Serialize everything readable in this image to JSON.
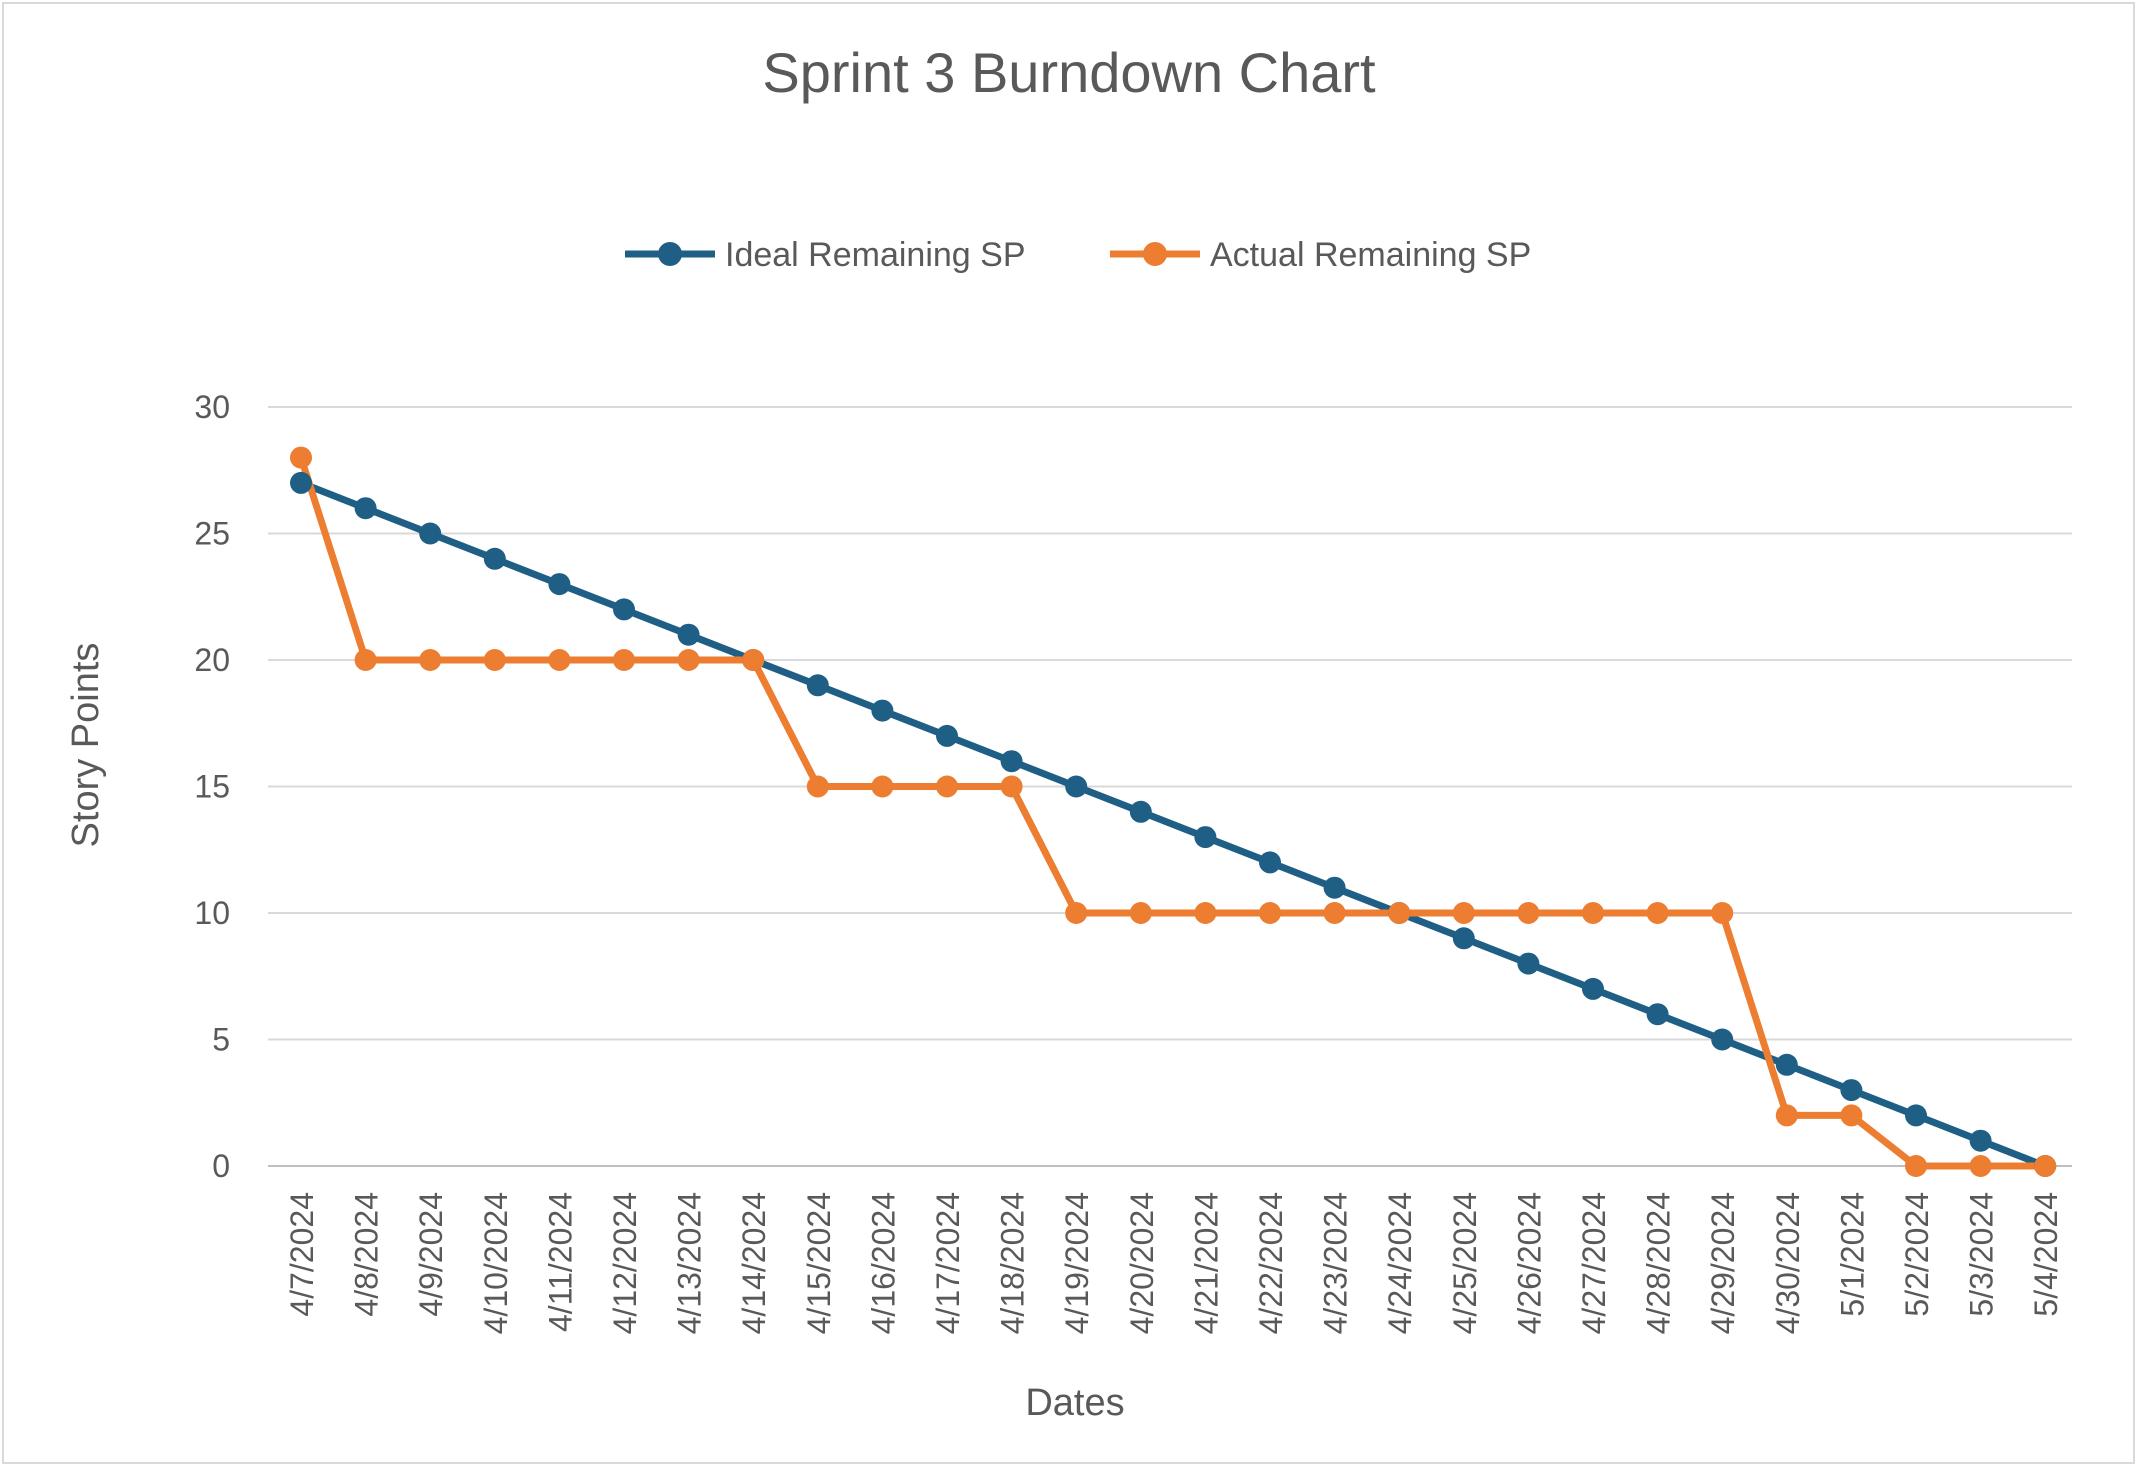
{
  "chart_data": {
    "type": "line",
    "title": "Sprint 3 Burndown Chart",
    "xlabel": "Dates",
    "ylabel": "Story Points",
    "ylim": [
      0,
      30
    ],
    "yticks": [
      0,
      5,
      10,
      15,
      20,
      25,
      30
    ],
    "grid": true,
    "legend_position": "top",
    "x": [
      "4/7/2024",
      "4/8/2024",
      "4/9/2024",
      "4/10/2024",
      "4/11/2024",
      "4/12/2024",
      "4/13/2024",
      "4/14/2024",
      "4/15/2024",
      "4/16/2024",
      "4/17/2024",
      "4/18/2024",
      "4/19/2024",
      "4/20/2024",
      "4/21/2024",
      "4/22/2024",
      "4/23/2024",
      "4/24/2024",
      "4/25/2024",
      "4/26/2024",
      "4/27/2024",
      "4/28/2024",
      "4/29/2024",
      "4/30/2024",
      "5/1/2024",
      "5/2/2024",
      "5/3/2024",
      "5/4/2024"
    ],
    "series": [
      {
        "name": "Ideal Remaining SP",
        "color": "#1f5f85",
        "values": [
          27,
          26,
          25,
          24,
          23,
          22,
          21,
          20,
          19,
          18,
          17,
          16,
          15,
          14,
          13,
          12,
          11,
          10,
          9,
          8,
          7,
          6,
          5,
          4,
          3,
          2,
          1,
          0
        ]
      },
      {
        "name": "Actual Remaining SP",
        "color": "#ed7d31",
        "values": [
          28,
          20,
          20,
          20,
          20,
          20,
          20,
          20,
          15,
          15,
          15,
          15,
          10,
          10,
          10,
          10,
          10,
          10,
          10,
          10,
          10,
          10,
          10,
          2,
          2,
          0,
          0,
          0
        ]
      }
    ]
  }
}
